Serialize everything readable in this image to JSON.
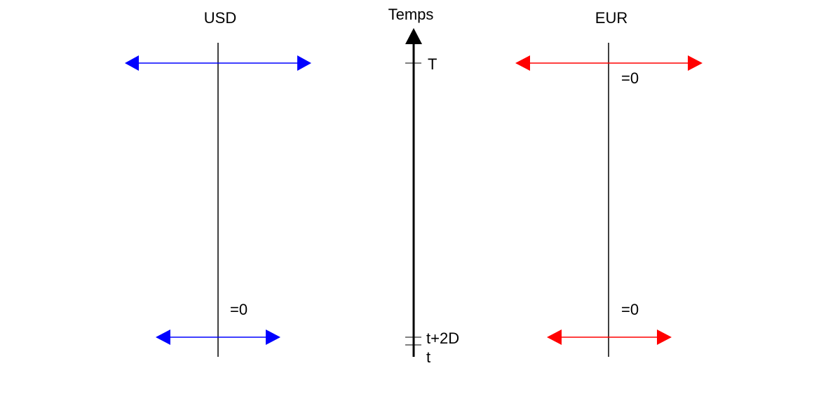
{
  "colors": {
    "usd": "#0000ff",
    "eur": "#ff0000",
    "axis": "#000000"
  },
  "usd": {
    "title": "USD",
    "bottom_label": "=0"
  },
  "eur": {
    "title": "EUR",
    "top_label": "=0",
    "bottom_label": "=0"
  },
  "time_axis": {
    "title": "Temps",
    "ticks": {
      "maturity": "T",
      "settlement": "t+2D",
      "trade": "t"
    }
  }
}
